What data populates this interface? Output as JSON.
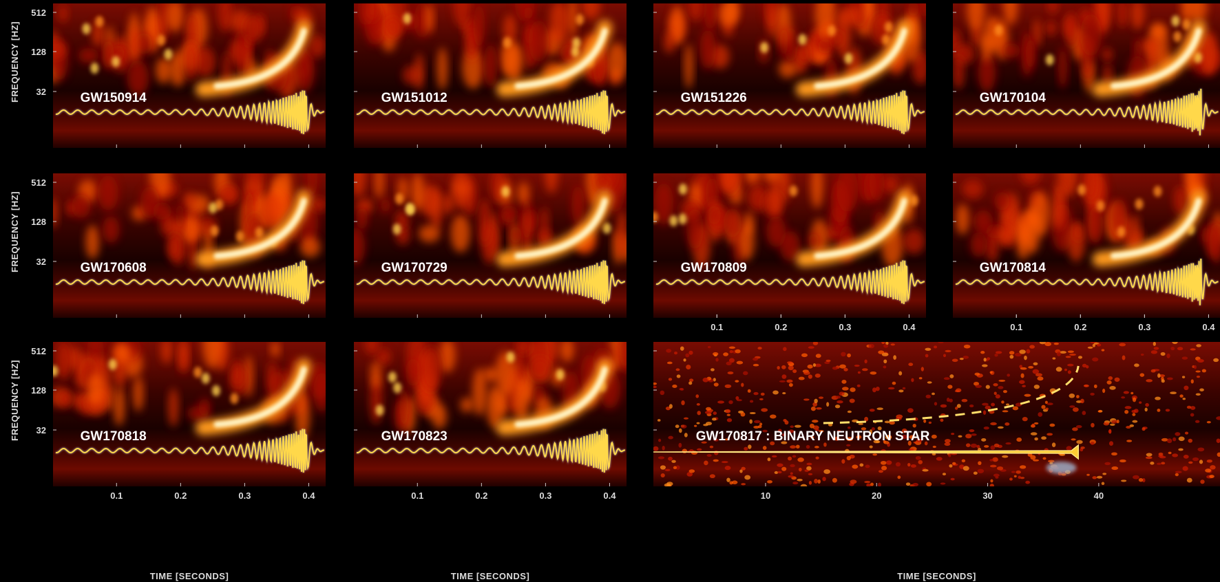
{
  "axis_titles": {
    "frequency": "FREQUENCY [HZ]",
    "time": "TIME [SECONDS]"
  },
  "frequency_ticks": [
    "512",
    "128",
    "32"
  ],
  "time_ticks": [
    "0.1",
    "0.2",
    "0.3",
    "0.4"
  ],
  "bns_time_ticks": [
    "10",
    "20",
    "30",
    "40"
  ],
  "panels": [
    {
      "label": "GW150914"
    },
    {
      "label": "GW151012"
    },
    {
      "label": "GW151226"
    },
    {
      "label": "GW170104"
    },
    {
      "label": "GW170608"
    },
    {
      "label": "GW170729"
    },
    {
      "label": "GW170809"
    },
    {
      "label": "GW170814"
    },
    {
      "label": "GW170818"
    },
    {
      "label": "GW170823"
    },
    {
      "label": "GW170817 : BINARY NEUTRON STAR"
    }
  ]
}
